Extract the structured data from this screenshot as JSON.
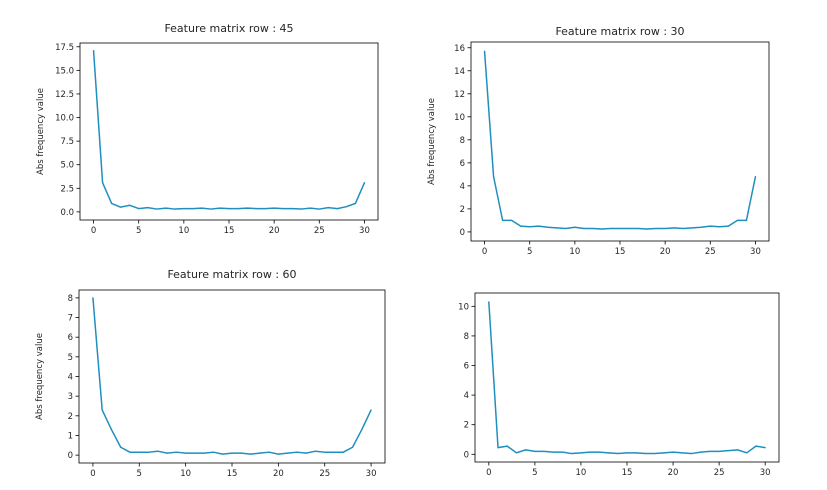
{
  "chart_data": [
    {
      "type": "line",
      "title": "Feature matrix row : 45",
      "xlabel": "",
      "ylabel": "Abs frequency value",
      "xlim": [
        -1.5,
        31.5
      ],
      "ylim": [
        -0.86,
        17.9
      ],
      "xticks": [
        0,
        5,
        10,
        15,
        20,
        25,
        30
      ],
      "yticks": [
        0.0,
        2.5,
        5.0,
        7.5,
        10.0,
        12.5,
        15.0,
        17.5
      ],
      "ytick_labels": [
        "0.0",
        "2.5",
        "5.0",
        "7.5",
        "10.0",
        "12.5",
        "15.0",
        "17.5"
      ],
      "color": "#1f8fbf",
      "x": [
        0,
        1,
        2,
        3,
        4,
        5,
        6,
        7,
        8,
        9,
        10,
        11,
        12,
        13,
        14,
        15,
        16,
        17,
        18,
        19,
        20,
        21,
        22,
        23,
        24,
        25,
        26,
        27,
        28,
        29,
        30
      ],
      "values": [
        17.1,
        3.1,
        0.9,
        0.5,
        0.7,
        0.35,
        0.45,
        0.3,
        0.4,
        0.3,
        0.35,
        0.35,
        0.4,
        0.3,
        0.4,
        0.35,
        0.35,
        0.4,
        0.35,
        0.35,
        0.4,
        0.35,
        0.35,
        0.3,
        0.4,
        0.3,
        0.45,
        0.35,
        0.55,
        0.9,
        3.1
      ]
    },
    {
      "type": "line",
      "title": "Feature matrix row : 30",
      "xlabel": "",
      "ylabel": "Abs frequency value",
      "xlim": [
        -1.5,
        31.5
      ],
      "ylim": [
        -0.79,
        16.5
      ],
      "xticks": [
        0,
        5,
        10,
        15,
        20,
        25,
        30
      ],
      "yticks": [
        0,
        2,
        4,
        6,
        8,
        10,
        12,
        14,
        16
      ],
      "ytick_labels": [
        "0",
        "2",
        "4",
        "6",
        "8",
        "10",
        "12",
        "14",
        "16"
      ],
      "color": "#1f8fbf",
      "x": [
        0,
        1,
        2,
        3,
        4,
        5,
        6,
        7,
        8,
        9,
        10,
        11,
        12,
        13,
        14,
        15,
        16,
        17,
        18,
        19,
        20,
        21,
        22,
        23,
        24,
        25,
        26,
        27,
        28,
        29,
        30
      ],
      "values": [
        15.7,
        4.8,
        1.0,
        1.0,
        0.5,
        0.45,
        0.5,
        0.4,
        0.35,
        0.3,
        0.4,
        0.3,
        0.3,
        0.25,
        0.3,
        0.3,
        0.3,
        0.3,
        0.25,
        0.3,
        0.3,
        0.35,
        0.3,
        0.35,
        0.4,
        0.5,
        0.45,
        0.5,
        1.0,
        1.0,
        4.8
      ]
    },
    {
      "type": "line",
      "title": "Feature matrix row : 60",
      "xlabel": "",
      "ylabel": "Abs frequency value",
      "xlim": [
        -1.5,
        31.5
      ],
      "ylim": [
        -0.4,
        8.4
      ],
      "xticks": [
        0,
        5,
        10,
        15,
        20,
        25,
        30
      ],
      "yticks": [
        0,
        1,
        2,
        3,
        4,
        5,
        6,
        7,
        8
      ],
      "ytick_labels": [
        "0",
        "1",
        "2",
        "3",
        "4",
        "5",
        "6",
        "7",
        "8"
      ],
      "color": "#1f8fbf",
      "x": [
        0,
        1,
        2,
        3,
        4,
        5,
        6,
        7,
        8,
        9,
        10,
        11,
        12,
        13,
        14,
        15,
        16,
        17,
        18,
        19,
        20,
        21,
        22,
        23,
        24,
        25,
        26,
        27,
        28,
        29,
        30
      ],
      "values": [
        8.0,
        2.3,
        1.3,
        0.4,
        0.15,
        0.15,
        0.15,
        0.2,
        0.1,
        0.15,
        0.1,
        0.1,
        0.1,
        0.15,
        0.05,
        0.1,
        0.1,
        0.05,
        0.1,
        0.15,
        0.05,
        0.1,
        0.15,
        0.1,
        0.2,
        0.15,
        0.15,
        0.15,
        0.4,
        1.3,
        2.3
      ]
    },
    {
      "type": "line",
      "title": "",
      "xlabel": "",
      "ylabel": "",
      "xlim": [
        -1.5,
        31.5
      ],
      "ylim": [
        -0.52,
        10.9
      ],
      "xticks": [
        0,
        5,
        10,
        15,
        20,
        25,
        30
      ],
      "yticks": [
        0,
        2,
        4,
        6,
        8,
        10
      ],
      "ytick_labels": [
        "0",
        "2",
        "4",
        "6",
        "8",
        "10"
      ],
      "color": "#1f8fbf",
      "x": [
        0,
        1,
        2,
        3,
        4,
        5,
        6,
        7,
        8,
        9,
        10,
        11,
        12,
        13,
        14,
        15,
        16,
        17,
        18,
        19,
        20,
        21,
        22,
        23,
        24,
        25,
        26,
        27,
        28,
        29,
        30
      ],
      "values": [
        10.3,
        0.45,
        0.55,
        0.1,
        0.3,
        0.2,
        0.2,
        0.15,
        0.15,
        0.05,
        0.1,
        0.15,
        0.15,
        0.1,
        0.05,
        0.1,
        0.1,
        0.05,
        0.05,
        0.1,
        0.15,
        0.1,
        0.05,
        0.15,
        0.2,
        0.2,
        0.25,
        0.3,
        0.1,
        0.55,
        0.45
      ]
    }
  ]
}
